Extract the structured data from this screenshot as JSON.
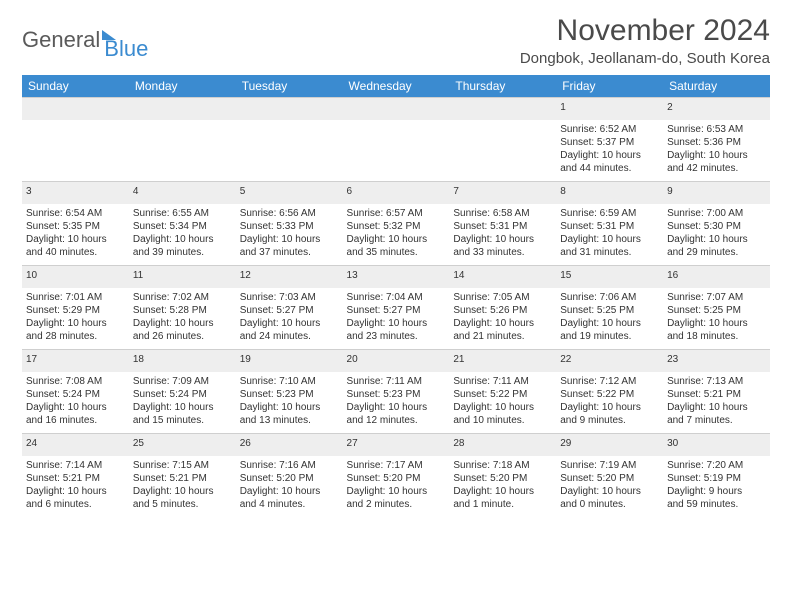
{
  "logo": {
    "part1": "General",
    "part2": "Blue"
  },
  "title": "November 2024",
  "location": "Dongbok, Jeollanam-do, South Korea",
  "colors": {
    "header_bg": "#3b8bd0",
    "daynum_bg": "#eeeeee",
    "text": "#333333",
    "title_text": "#4a4a4a"
  },
  "weekdays": [
    "Sunday",
    "Monday",
    "Tuesday",
    "Wednesday",
    "Thursday",
    "Friday",
    "Saturday"
  ],
  "weeks": [
    [
      null,
      null,
      null,
      null,
      null,
      {
        "n": "1",
        "sr": "Sunrise: 6:52 AM",
        "ss": "Sunset: 5:37 PM",
        "d1": "Daylight: 10 hours",
        "d2": "and 44 minutes."
      },
      {
        "n": "2",
        "sr": "Sunrise: 6:53 AM",
        "ss": "Sunset: 5:36 PM",
        "d1": "Daylight: 10 hours",
        "d2": "and 42 minutes."
      }
    ],
    [
      {
        "n": "3",
        "sr": "Sunrise: 6:54 AM",
        "ss": "Sunset: 5:35 PM",
        "d1": "Daylight: 10 hours",
        "d2": "and 40 minutes."
      },
      {
        "n": "4",
        "sr": "Sunrise: 6:55 AM",
        "ss": "Sunset: 5:34 PM",
        "d1": "Daylight: 10 hours",
        "d2": "and 39 minutes."
      },
      {
        "n": "5",
        "sr": "Sunrise: 6:56 AM",
        "ss": "Sunset: 5:33 PM",
        "d1": "Daylight: 10 hours",
        "d2": "and 37 minutes."
      },
      {
        "n": "6",
        "sr": "Sunrise: 6:57 AM",
        "ss": "Sunset: 5:32 PM",
        "d1": "Daylight: 10 hours",
        "d2": "and 35 minutes."
      },
      {
        "n": "7",
        "sr": "Sunrise: 6:58 AM",
        "ss": "Sunset: 5:31 PM",
        "d1": "Daylight: 10 hours",
        "d2": "and 33 minutes."
      },
      {
        "n": "8",
        "sr": "Sunrise: 6:59 AM",
        "ss": "Sunset: 5:31 PM",
        "d1": "Daylight: 10 hours",
        "d2": "and 31 minutes."
      },
      {
        "n": "9",
        "sr": "Sunrise: 7:00 AM",
        "ss": "Sunset: 5:30 PM",
        "d1": "Daylight: 10 hours",
        "d2": "and 29 minutes."
      }
    ],
    [
      {
        "n": "10",
        "sr": "Sunrise: 7:01 AM",
        "ss": "Sunset: 5:29 PM",
        "d1": "Daylight: 10 hours",
        "d2": "and 28 minutes."
      },
      {
        "n": "11",
        "sr": "Sunrise: 7:02 AM",
        "ss": "Sunset: 5:28 PM",
        "d1": "Daylight: 10 hours",
        "d2": "and 26 minutes."
      },
      {
        "n": "12",
        "sr": "Sunrise: 7:03 AM",
        "ss": "Sunset: 5:27 PM",
        "d1": "Daylight: 10 hours",
        "d2": "and 24 minutes."
      },
      {
        "n": "13",
        "sr": "Sunrise: 7:04 AM",
        "ss": "Sunset: 5:27 PM",
        "d1": "Daylight: 10 hours",
        "d2": "and 23 minutes."
      },
      {
        "n": "14",
        "sr": "Sunrise: 7:05 AM",
        "ss": "Sunset: 5:26 PM",
        "d1": "Daylight: 10 hours",
        "d2": "and 21 minutes."
      },
      {
        "n": "15",
        "sr": "Sunrise: 7:06 AM",
        "ss": "Sunset: 5:25 PM",
        "d1": "Daylight: 10 hours",
        "d2": "and 19 minutes."
      },
      {
        "n": "16",
        "sr": "Sunrise: 7:07 AM",
        "ss": "Sunset: 5:25 PM",
        "d1": "Daylight: 10 hours",
        "d2": "and 18 minutes."
      }
    ],
    [
      {
        "n": "17",
        "sr": "Sunrise: 7:08 AM",
        "ss": "Sunset: 5:24 PM",
        "d1": "Daylight: 10 hours",
        "d2": "and 16 minutes."
      },
      {
        "n": "18",
        "sr": "Sunrise: 7:09 AM",
        "ss": "Sunset: 5:24 PM",
        "d1": "Daylight: 10 hours",
        "d2": "and 15 minutes."
      },
      {
        "n": "19",
        "sr": "Sunrise: 7:10 AM",
        "ss": "Sunset: 5:23 PM",
        "d1": "Daylight: 10 hours",
        "d2": "and 13 minutes."
      },
      {
        "n": "20",
        "sr": "Sunrise: 7:11 AM",
        "ss": "Sunset: 5:23 PM",
        "d1": "Daylight: 10 hours",
        "d2": "and 12 minutes."
      },
      {
        "n": "21",
        "sr": "Sunrise: 7:11 AM",
        "ss": "Sunset: 5:22 PM",
        "d1": "Daylight: 10 hours",
        "d2": "and 10 minutes."
      },
      {
        "n": "22",
        "sr": "Sunrise: 7:12 AM",
        "ss": "Sunset: 5:22 PM",
        "d1": "Daylight: 10 hours",
        "d2": "and 9 minutes."
      },
      {
        "n": "23",
        "sr": "Sunrise: 7:13 AM",
        "ss": "Sunset: 5:21 PM",
        "d1": "Daylight: 10 hours",
        "d2": "and 7 minutes."
      }
    ],
    [
      {
        "n": "24",
        "sr": "Sunrise: 7:14 AM",
        "ss": "Sunset: 5:21 PM",
        "d1": "Daylight: 10 hours",
        "d2": "and 6 minutes."
      },
      {
        "n": "25",
        "sr": "Sunrise: 7:15 AM",
        "ss": "Sunset: 5:21 PM",
        "d1": "Daylight: 10 hours",
        "d2": "and 5 minutes."
      },
      {
        "n": "26",
        "sr": "Sunrise: 7:16 AM",
        "ss": "Sunset: 5:20 PM",
        "d1": "Daylight: 10 hours",
        "d2": "and 4 minutes."
      },
      {
        "n": "27",
        "sr": "Sunrise: 7:17 AM",
        "ss": "Sunset: 5:20 PM",
        "d1": "Daylight: 10 hours",
        "d2": "and 2 minutes."
      },
      {
        "n": "28",
        "sr": "Sunrise: 7:18 AM",
        "ss": "Sunset: 5:20 PM",
        "d1": "Daylight: 10 hours",
        "d2": "and 1 minute."
      },
      {
        "n": "29",
        "sr": "Sunrise: 7:19 AM",
        "ss": "Sunset: 5:20 PM",
        "d1": "Daylight: 10 hours",
        "d2": "and 0 minutes."
      },
      {
        "n": "30",
        "sr": "Sunrise: 7:20 AM",
        "ss": "Sunset: 5:19 PM",
        "d1": "Daylight: 9 hours",
        "d2": "and 59 minutes."
      }
    ]
  ]
}
